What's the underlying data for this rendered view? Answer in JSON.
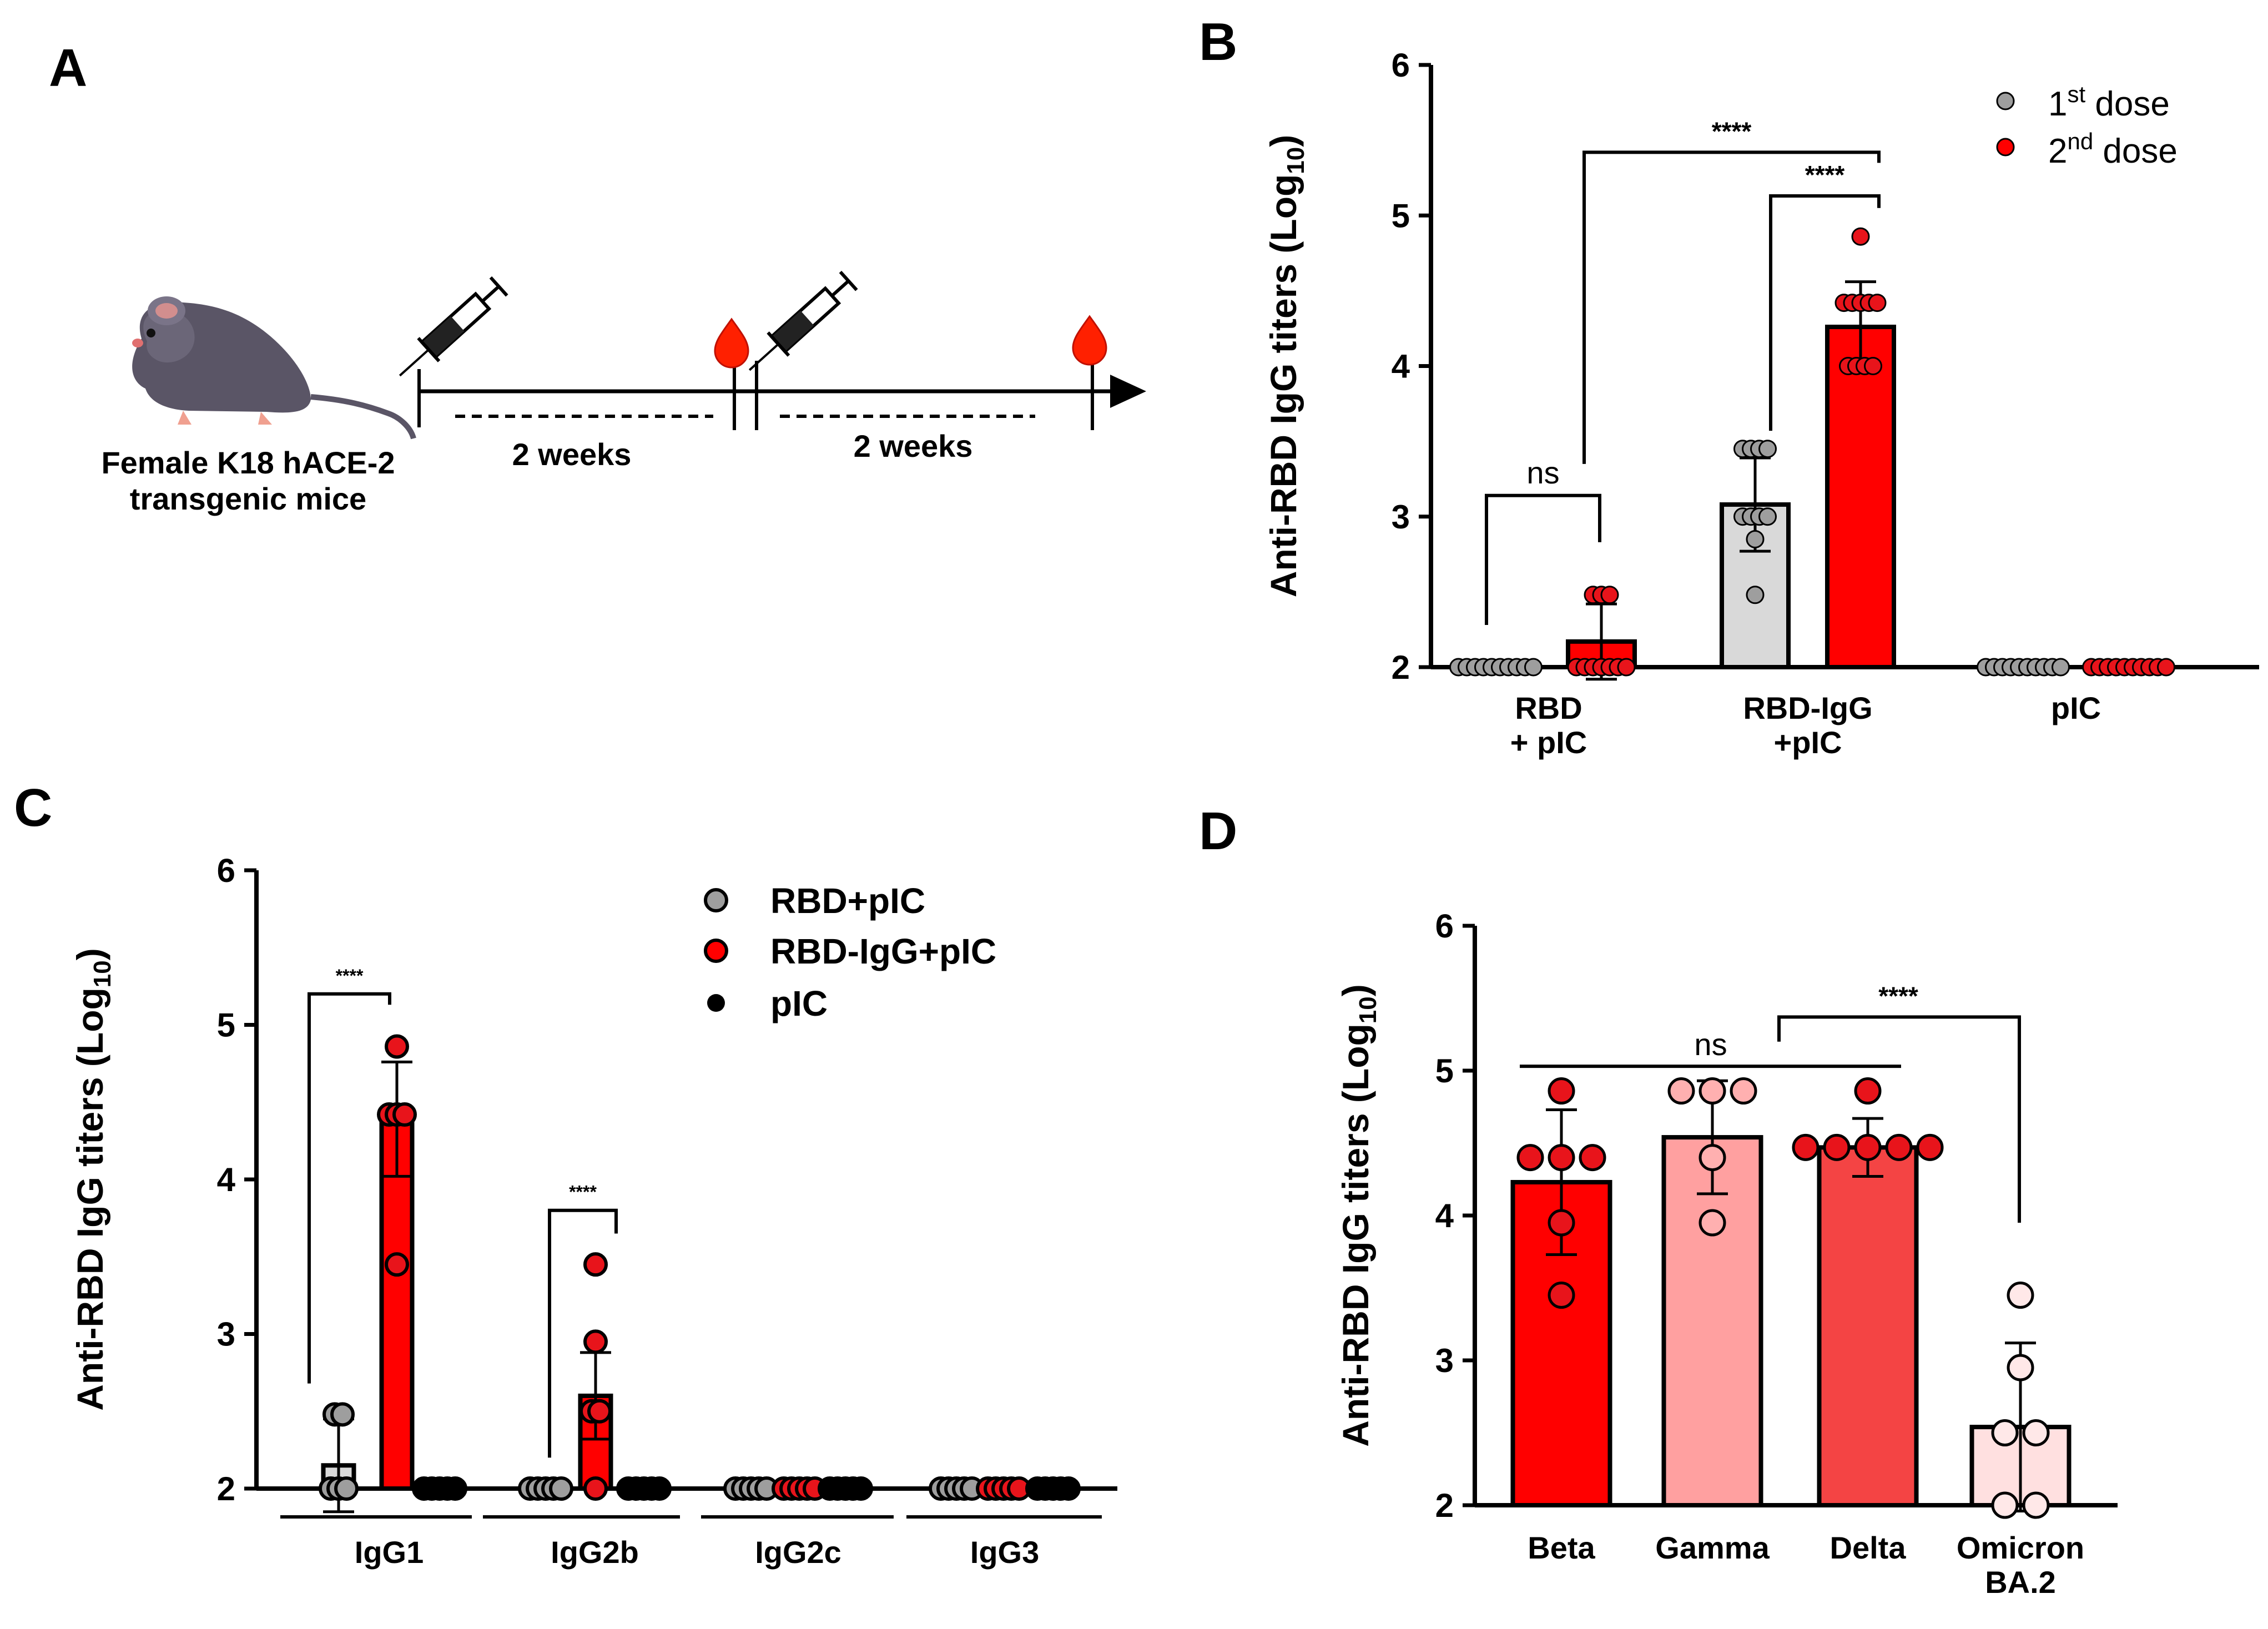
{
  "panels": {
    "a": {
      "label": "A",
      "mouse_caption_1": "Female K18 hACE-2",
      "mouse_caption_2": "transgenic mice",
      "interval_1": "2 weeks",
      "interval_2": "2 weeks"
    },
    "b": {
      "label": "B"
    },
    "c": {
      "label": "C"
    },
    "d": {
      "label": "D"
    }
  },
  "colors": {
    "gray": "#d9d9d9",
    "gray_point": "#9e9e9e",
    "red": "#ff0000",
    "red_point": "#e8141b",
    "pink": "#ffa0a0",
    "light_pink": "#ffe0e0",
    "mid_red": "#f44444",
    "blood": "#ff2000"
  },
  "chart_data": [
    {
      "panel": "B",
      "type": "bar",
      "ylabel": "Anti-RBD IgG titers (Log10)",
      "ylim": [
        2,
        6
      ],
      "yticks": [
        2,
        3,
        4,
        5,
        6
      ],
      "categories": [
        "RBD\n+ pIC",
        "RBD-IgG\n+pIC",
        "pIC"
      ],
      "legend_position": "top-right",
      "series": [
        {
          "name": "1st dose",
          "values": [
            2.0,
            3.08,
            2.0
          ],
          "sd": [
            0,
            0.31,
            0
          ],
          "points": [
            [
              2,
              2,
              2,
              2,
              2,
              2,
              2,
              2,
              2,
              2
            ],
            [
              3.45,
              3.45,
              3.45,
              3.45,
              3.0,
              3.0,
              3.0,
              3.0,
              2.85,
              2.48
            ],
            [
              2,
              2,
              2,
              2,
              2,
              2,
              2,
              2,
              2,
              2
            ]
          ]
        },
        {
          "name": "2nd dose",
          "values": [
            2.17,
            4.26,
            2.0
          ],
          "sd": [
            0.25,
            0.3,
            0
          ],
          "points": [
            [
              2.48,
              2.48,
              2.48,
              2.0,
              2.0,
              2.0,
              2.0,
              2.0,
              2.0,
              2.0
            ],
            [
              4.86,
              4.42,
              4.42,
              4.42,
              4.42,
              4.42,
              4.0,
              4.0,
              4.0,
              4.0
            ],
            [
              2,
              2,
              2,
              2,
              2,
              2,
              2,
              2,
              2,
              2
            ]
          ]
        }
      ],
      "legend": [
        {
          "base": "1",
          "sup": "st",
          "rest": " dose"
        },
        {
          "base": "2",
          "sup": "nd",
          "rest": " dose"
        }
      ],
      "annotations": [
        "ns",
        "****",
        "****"
      ]
    },
    {
      "panel": "C",
      "type": "bar",
      "ylabel": "Anti-RBD IgG titers (Log10)",
      "ylim": [
        2,
        6
      ],
      "yticks": [
        2,
        3,
        4,
        5,
        6
      ],
      "categories": [
        "IgG1",
        "IgG2b",
        "IgG2c",
        "IgG3"
      ],
      "legend_position": "top-right",
      "series": [
        {
          "name": "RBD+pIC",
          "values": [
            2.15,
            2.0,
            2.0,
            2.0
          ],
          "sd": [
            0.3,
            0,
            0,
            0
          ],
          "points": [
            [
              2.48,
              2.48,
              2.0,
              2.0,
              2.0
            ],
            [
              2,
              2,
              2,
              2,
              2
            ],
            [
              2,
              2,
              2,
              2,
              2
            ],
            [
              2,
              2,
              2,
              2,
              2
            ]
          ]
        },
        {
          "name": "RBD-IgG+pIC",
          "values": [
            4.39,
            2.6,
            2.0,
            2.0
          ],
          "sd": [
            0.37,
            0.28,
            0,
            0
          ],
          "points": [
            [
              4.86,
              4.42,
              4.42,
              4.42,
              3.45
            ],
            [
              3.45,
              2.95,
              2.5,
              2.5,
              2.0
            ],
            [
              2,
              2,
              2,
              2,
              2
            ],
            [
              2,
              2,
              2,
              2,
              2
            ]
          ]
        },
        {
          "name": "pIC",
          "values": [
            2.0,
            2.0,
            2.0,
            2.0
          ],
          "sd": [
            0,
            0,
            0,
            0
          ],
          "points": [
            [
              2,
              2,
              2,
              2,
              2
            ],
            [
              2,
              2,
              2,
              2,
              2
            ],
            [
              2,
              2,
              2,
              2,
              2
            ],
            [
              2,
              2,
              2,
              2,
              2
            ]
          ]
        }
      ],
      "annotations": [
        "****",
        "****"
      ]
    },
    {
      "panel": "D",
      "type": "bar",
      "ylabel": "Anti-RBD IgG titers (Log10)",
      "ylim": [
        2,
        6
      ],
      "yticks": [
        2,
        3,
        4,
        5,
        6
      ],
      "categories": [
        "Beta",
        "Gamma",
        "Delta",
        "Omicron\nBA.2"
      ],
      "series": [
        {
          "name": "",
          "values": [
            4.23,
            4.54,
            4.47,
            2.54
          ],
          "sd": [
            0.5,
            0.39,
            0.2,
            0.58
          ],
          "points": [
            [
              4.86,
              4.4,
              4.4,
              4.4,
              3.95,
              3.45
            ],
            [
              4.86,
              4.86,
              4.86,
              4.4,
              3.95
            ],
            [
              4.86,
              4.47,
              4.47,
              4.47,
              4.47,
              4.47
            ],
            [
              3.45,
              2.95,
              2.5,
              2.5,
              2.0,
              2.0
            ]
          ]
        }
      ],
      "annotations": [
        "ns",
        "****"
      ]
    }
  ]
}
